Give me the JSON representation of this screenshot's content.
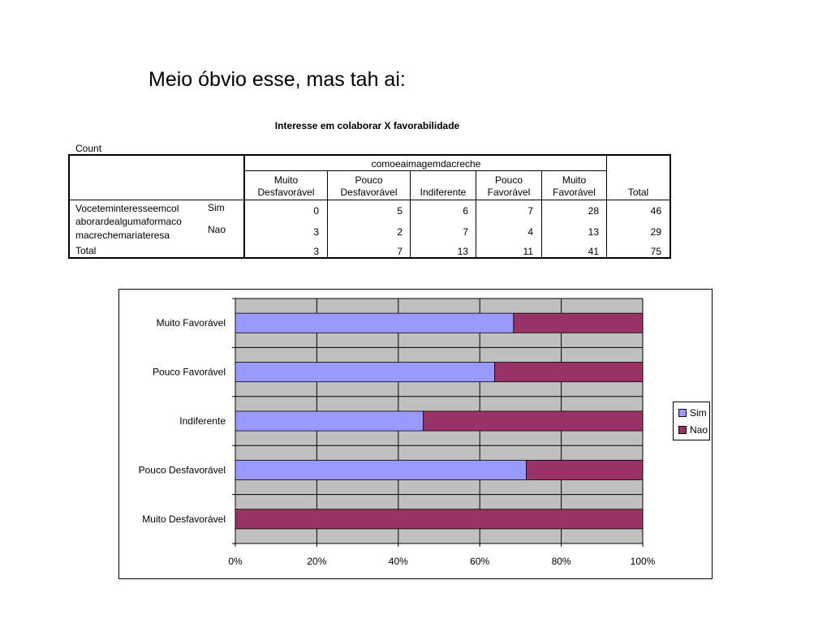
{
  "slide": {
    "title": "Meio óbvio esse, mas tah ai:"
  },
  "table": {
    "title": "Interesse em colaborar X favorabilidade",
    "count_label": "Count",
    "col_group_label": "comoeaimagemdacreche",
    "columns": [
      [
        "Muito",
        "Desfavorável"
      ],
      [
        "Pouco",
        "Desfavorável"
      ],
      [
        "",
        "Indiferente"
      ],
      [
        "Pouco",
        "Favorável"
      ],
      [
        "Muito",
        "Favorável"
      ],
      [
        "",
        "Total"
      ]
    ],
    "row_var_label": [
      "Voceteminteresseemcol",
      "aborardealgumaformaco",
      "macrechemariateresa"
    ],
    "rows": [
      {
        "label": "Sim",
        "values": [
          "0",
          "5",
          "6",
          "7",
          "28",
          "46"
        ]
      },
      {
        "label": "Nao",
        "values": [
          "3",
          "2",
          "7",
          "4",
          "13",
          "29"
        ]
      }
    ],
    "total_row": {
      "label": "Total",
      "values": [
        "3",
        "7",
        "13",
        "11",
        "41",
        "75"
      ]
    }
  },
  "chart_data": {
    "type": "bar",
    "orientation": "horizontal",
    "stacking": "percent",
    "categories": [
      "Muito Desfavorável",
      "Pouco Desfavorável",
      "Indiferente",
      "Pouco Favorável",
      "Muito Favorável"
    ],
    "series": [
      {
        "name": "Sim",
        "values": [
          0,
          5,
          6,
          7,
          28
        ],
        "color": "#9999ff"
      },
      {
        "name": "Nao",
        "values": [
          3,
          2,
          7,
          4,
          13
        ],
        "color": "#993366"
      }
    ],
    "xticks": [
      "0%",
      "20%",
      "40%",
      "60%",
      "80%",
      "100%"
    ],
    "xlim": [
      0,
      100
    ],
    "grid": true,
    "plot_background": "#c0c0c0",
    "legend_position": "right"
  }
}
